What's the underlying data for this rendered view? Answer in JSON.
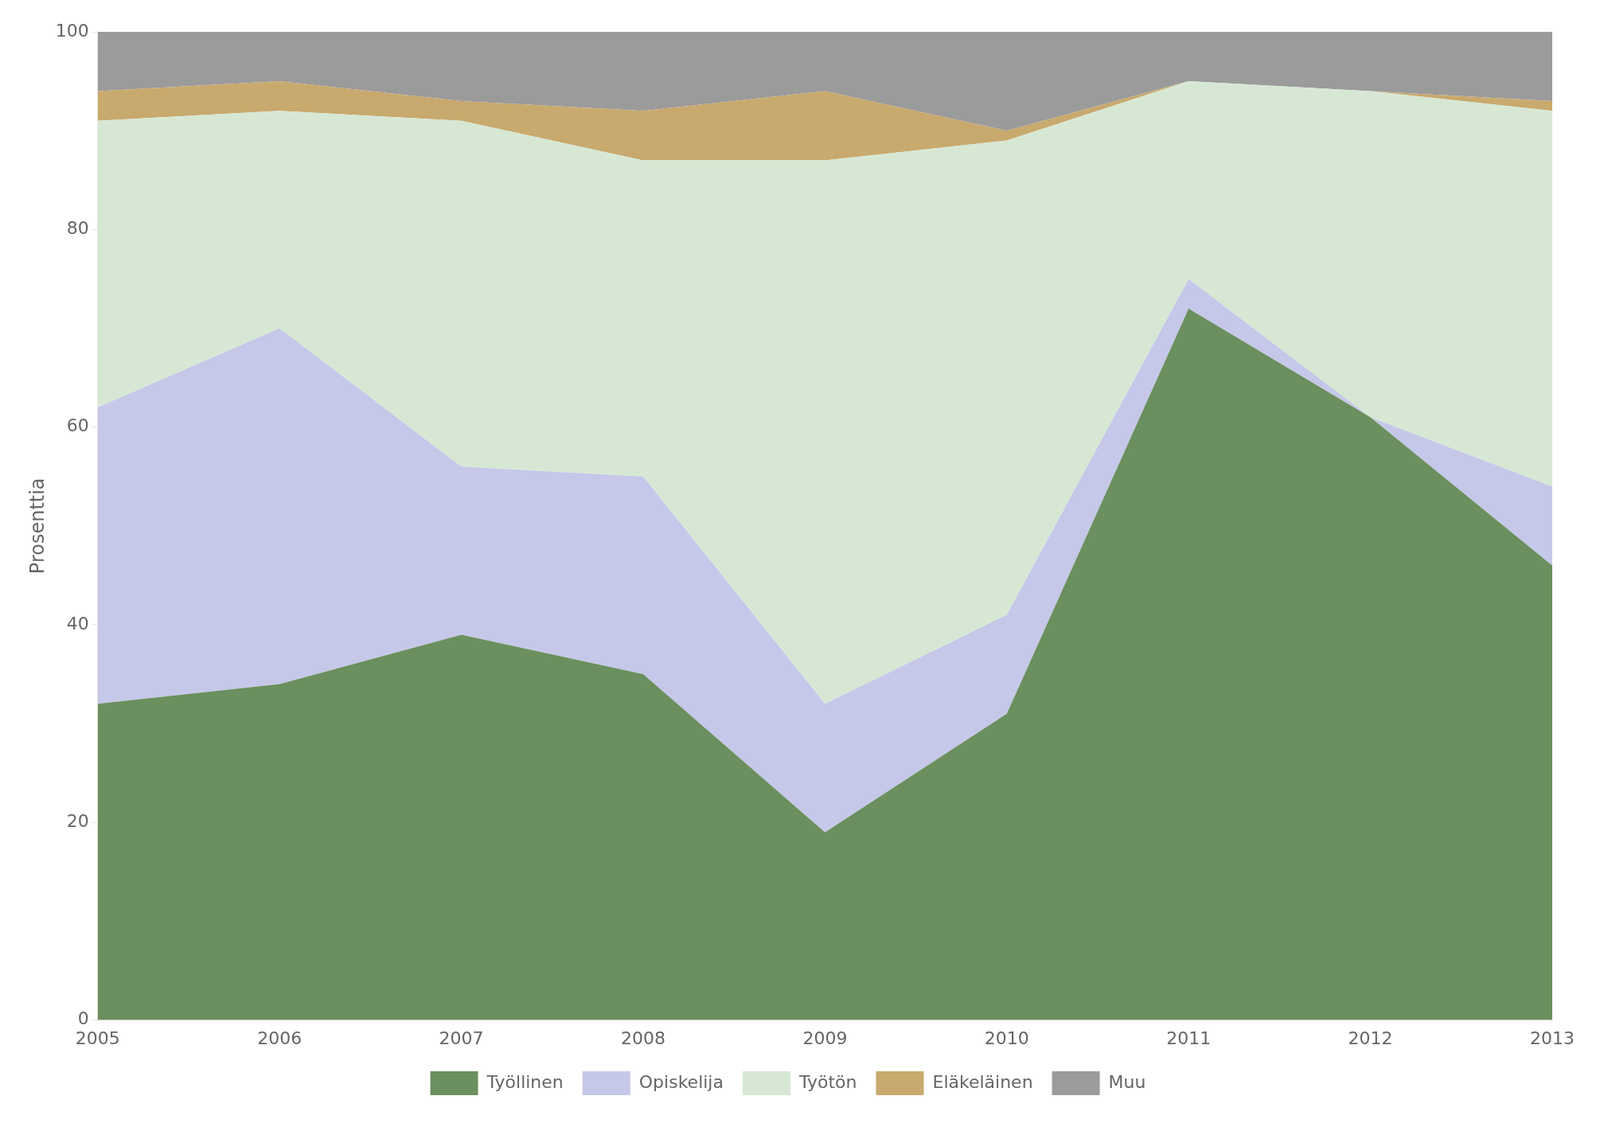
{
  "chart_data": {
    "type": "area",
    "ylabel": "Prosenttia",
    "x": [
      2005,
      2006,
      2007,
      2008,
      2009,
      2010,
      2011,
      2012,
      2013
    ],
    "xlim": [
      2005,
      2013
    ],
    "xticks": [
      2005,
      2006,
      2007,
      2008,
      2009,
      2010,
      2011,
      2012,
      2013
    ],
    "ylim": [
      0,
      100
    ],
    "yticks": [
      0,
      20,
      40,
      60,
      80,
      100
    ],
    "stacked": true,
    "grid": "y",
    "legend": "bottom",
    "series": [
      {
        "name": "Työllinen",
        "color": "#6b8f5e",
        "values": [
          32,
          34,
          39,
          35,
          19,
          31,
          72,
          61,
          46
        ]
      },
      {
        "name": "Opiskelija",
        "color": "#c5c8e8",
        "values": [
          30,
          36,
          17,
          20,
          13,
          10,
          3,
          0,
          8
        ]
      },
      {
        "name": "Työtön",
        "color": "#d6e8d4",
        "values": [
          29,
          22,
          35,
          32,
          55,
          48,
          20,
          33,
          38
        ]
      },
      {
        "name": "Eläkeläinen",
        "color": "#c8a96e",
        "values": [
          3,
          3,
          2,
          5,
          7,
          1,
          0,
          0,
          1
        ]
      },
      {
        "name": "Muu",
        "color": "#9b9b9b",
        "values": [
          6,
          5,
          7,
          8,
          6,
          10,
          5,
          6,
          7
        ]
      }
    ]
  }
}
